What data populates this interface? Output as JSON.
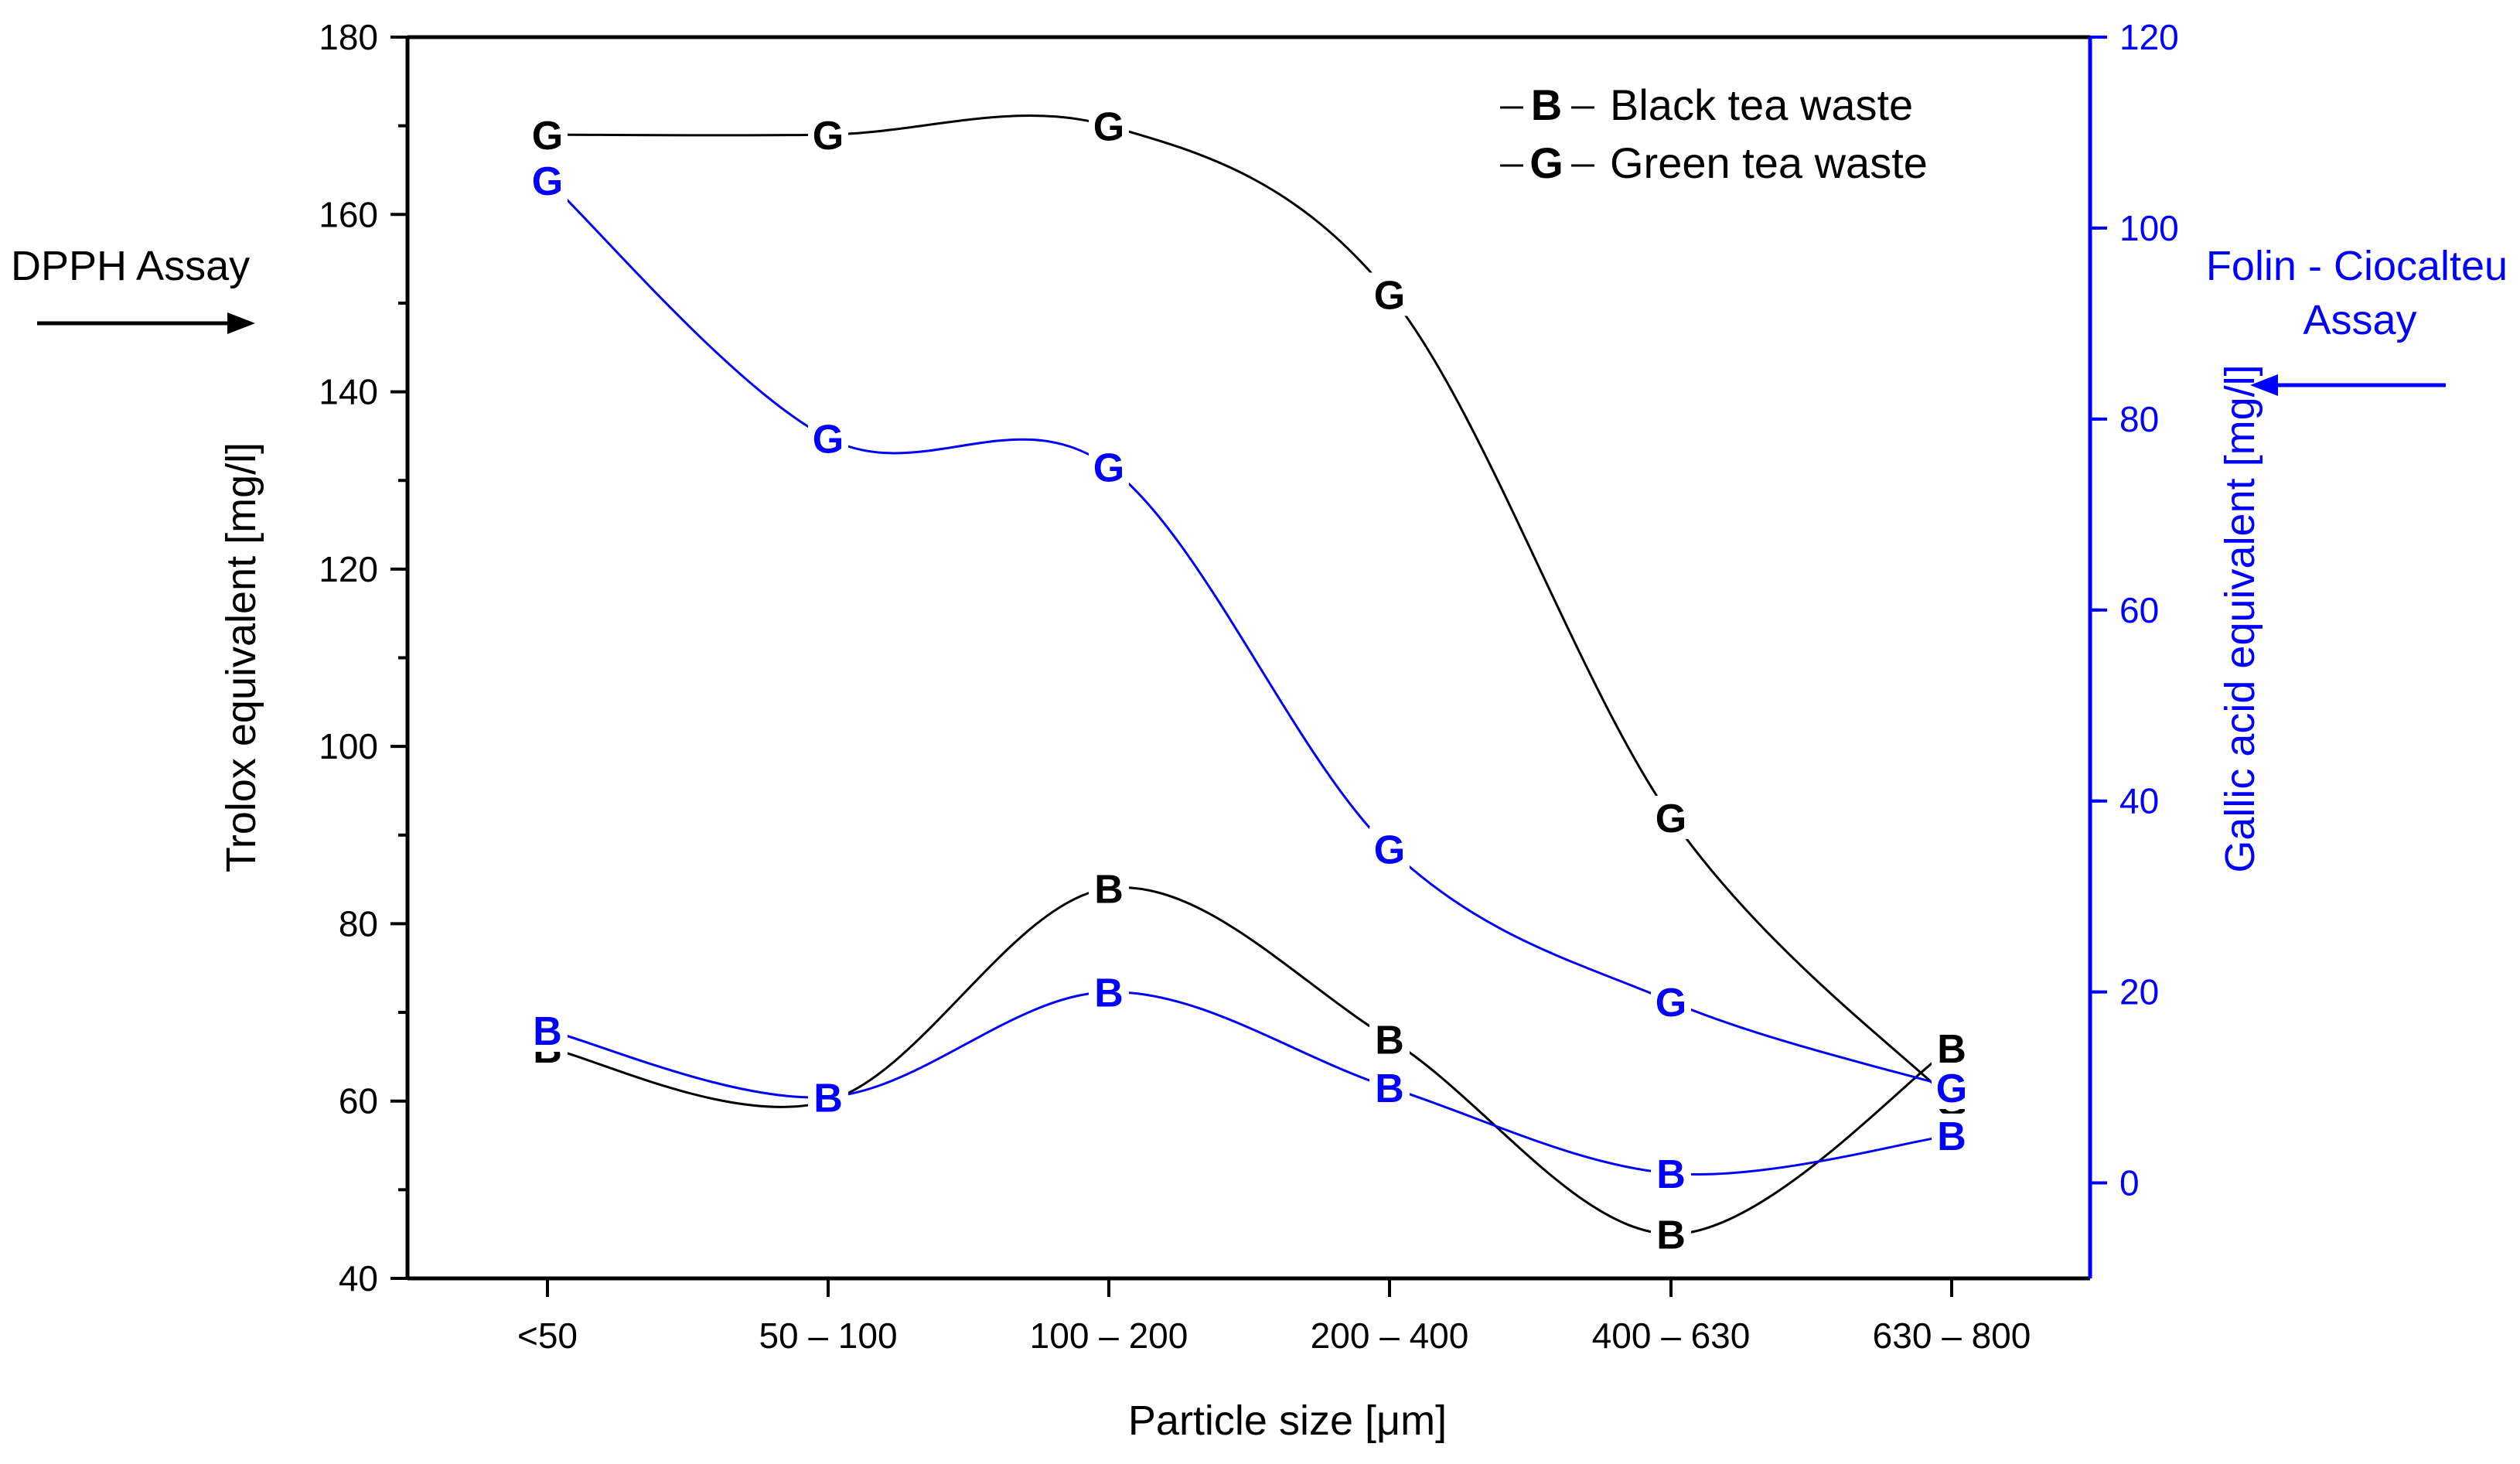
{
  "colors": {
    "dpph": "#000000",
    "folin": "#0000ff"
  },
  "chart_data": {
    "type": "line",
    "xlabel": "Particle size [μm]",
    "categories": [
      "<50",
      "50 – 100",
      "100 – 200",
      "200 – 400",
      "400 – 630",
      "630 – 800"
    ],
    "y_left": {
      "label": "Trolox equivalent [mg/l]",
      "ylim": [
        40,
        180
      ],
      "ticks": [
        40,
        60,
        80,
        100,
        120,
        140,
        160,
        180
      ]
    },
    "y_right": {
      "label": "Gallic acid equivalent [mg/l]",
      "ylim": [
        -10,
        120
      ],
      "ticks": [
        0,
        20,
        40,
        60,
        80,
        100,
        120
      ]
    },
    "annotations": {
      "left": "DPPH Assay",
      "right_line1": "Folin - Ciocalteu",
      "right_line2": "Assay"
    },
    "legend": [
      {
        "symbol": "B",
        "label": "Black tea waste"
      },
      {
        "symbol": "G",
        "label": "Green tea waste"
      }
    ],
    "series": [
      {
        "name": "Green tea waste – DPPH",
        "axis": "left",
        "symbol": "G",
        "color": "#000000",
        "values": [
          169,
          169,
          170,
          151,
          92,
          60
        ]
      },
      {
        "name": "Black tea waste – DPPH",
        "axis": "left",
        "symbol": "B",
        "color": "#000000",
        "values": [
          66,
          60,
          84,
          67,
          45,
          66
        ]
      },
      {
        "name": "Green tea waste – Folin-Ciocalteu",
        "axis": "right",
        "symbol": "G",
        "color": "#0000ff",
        "values": [
          105,
          78,
          75,
          35,
          19,
          10
        ]
      },
      {
        "name": "Black tea waste – Folin-Ciocalteu",
        "axis": "right",
        "symbol": "B",
        "color": "#0000ff",
        "values": [
          16,
          9,
          20,
          10,
          1,
          5
        ]
      }
    ]
  }
}
